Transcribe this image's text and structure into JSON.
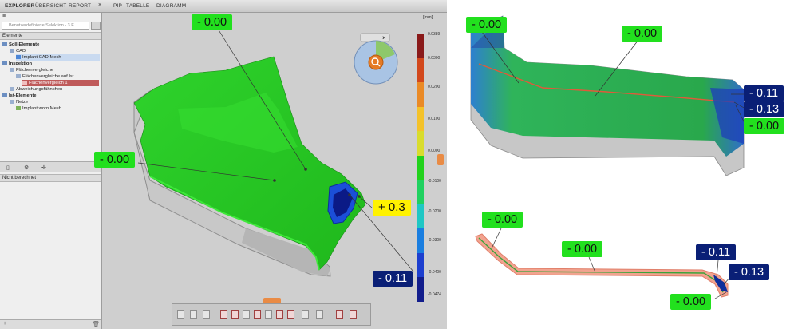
{
  "app": {
    "tabs": [
      "EXPLORER",
      "ÜBERSICHT",
      "REPORT",
      "PIP",
      "TABELLE",
      "DIAGRAMM"
    ],
    "sidebar": {
      "header_label": "≡",
      "search_placeholder": "Benutzerdefinierte Selektion - 3 E",
      "elements_header": "Elemente",
      "tree": [
        {
          "label": "Soll-Elemente",
          "bold": true
        },
        {
          "label": "CAD",
          "bold": false
        },
        {
          "label": "Implant CAD Mesh",
          "bold": false
        },
        {
          "label": "Inspektion",
          "bold": true
        },
        {
          "label": "Flächenvergleiche",
          "bold": false
        },
        {
          "label": "Flächenvergleiche auf Ist",
          "bold": false
        },
        {
          "label": "Flächenvergleich 1",
          "bold": false
        },
        {
          "label": "Abweichungsfähnchen",
          "bold": false
        },
        {
          "label": "Ist-Elemente",
          "bold": true
        },
        {
          "label": "Netze",
          "bold": false
        },
        {
          "label": "Implant worn Mesh",
          "bold": false
        }
      ],
      "status": "Nicht berechnet"
    },
    "colorbar": {
      "unit": "[mm]",
      "ticks": [
        "0.0389",
        "0.0300",
        "0.0200",
        "0.0100",
        "0.0000",
        "-0.0100",
        "-0.0200",
        "-0.0300",
        "-0.0400",
        "-0.0474"
      ],
      "colors": [
        "#8a1a1a",
        "#d2481c",
        "#ea8a26",
        "#f4c22a",
        "#d9dc2d",
        "#22d21c",
        "#20d160",
        "#1fc7c4",
        "#1a7ee0",
        "#1d3fcf",
        "#121d8c"
      ]
    },
    "labels": {
      "top": "- 0.00",
      "left": "- 0.00",
      "yellow": "+ 0.3",
      "navy": "- 0.11"
    }
  },
  "right": {
    "top_view_labels": {
      "a": "- 0.00",
      "b": "- 0.00",
      "c": "- 0.11",
      "d": "- 0.13",
      "e": "- 0.00"
    },
    "section_labels": {
      "a": "- 0.00",
      "b": "- 0.00",
      "c": "- 0.11",
      "d": "- 0.13",
      "e": "- 0.00"
    }
  }
}
